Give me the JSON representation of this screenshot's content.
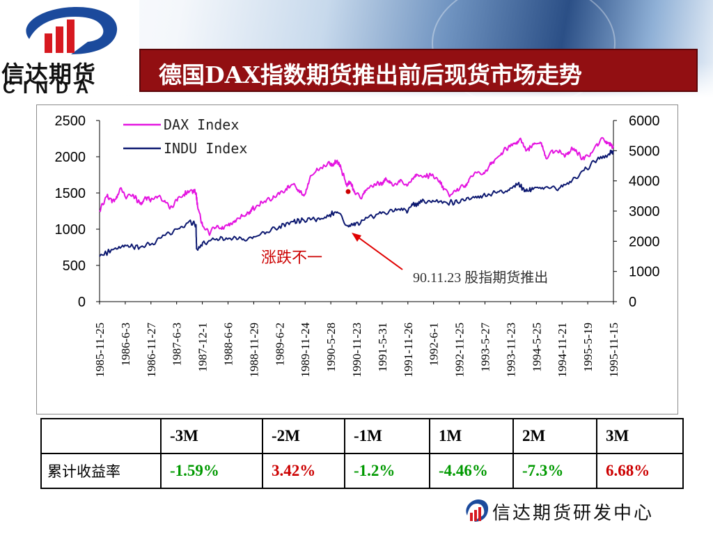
{
  "header": {
    "logo_cn": "信达期货",
    "logo_en": "CINDA",
    "title": "德国DAX指数期货推出前后现货市场走势"
  },
  "colors": {
    "title_bg": "#920f12",
    "dax_line": "#e414e0",
    "indu_line": "#0c1870",
    "annotation": "#cc0000",
    "positive": "#cc0000",
    "negative": "#009900"
  },
  "chart_data": {
    "type": "line",
    "title": "",
    "xlabel": "",
    "ylabel": "",
    "ylim_left": [
      0,
      2500
    ],
    "ylim_right": [
      0,
      6000
    ],
    "left_ticks": [
      "2500",
      "2000",
      "1500",
      "1000",
      "500",
      "0"
    ],
    "right_ticks": [
      "6000",
      "5000",
      "4000",
      "3000",
      "2000",
      "1000",
      "0"
    ],
    "x_ticks": [
      "1985-11-25",
      "1986-6-3",
      "1986-11-27",
      "1987-6-3",
      "1987-12-1",
      "1988-6-6",
      "1988-11-29",
      "1989-6-2",
      "1989-11-24",
      "1990-5-28",
      "1990-11-23",
      "1991-5-31",
      "1991-11-26",
      "1992-6-1",
      "1992-11-25",
      "1993-5-27",
      "1993-11-23",
      "1994-5-25",
      "1994-11-21",
      "1995-5-19",
      "1995-11-15"
    ],
    "grid": false,
    "legend_position": "top-left",
    "series": [
      {
        "name": "DAX Index",
        "axis": "left",
        "x": [
          "1985-11-25",
          "1986-1-15",
          "1986-3-10",
          "1986-4-20",
          "1986-6-3",
          "1986-7-20",
          "1986-9-10",
          "1986-10-20",
          "1986-11-27",
          "1987-1-15",
          "1987-3-1",
          "1987-4-15",
          "1987-6-3",
          "1987-7-20",
          "1987-9-15",
          "1987-10-15",
          "1987-10-26",
          "1987-12-1",
          "1988-1-15",
          "1988-3-1",
          "1988-4-15",
          "1988-6-6",
          "1988-7-20",
          "1988-9-10",
          "1988-10-20",
          "1988-11-29",
          "1989-1-15",
          "1989-3-1",
          "1989-4-15",
          "1989-6-2",
          "1989-7-20",
          "1989-9-10",
          "1989-10-20",
          "1989-11-24",
          "1990-1-5",
          "1990-2-20",
          "1990-4-10",
          "1990-5-28",
          "1990-6-20",
          "1990-7-20",
          "1990-8-20",
          "1990-9-25",
          "1990-10-25",
          "1990-11-23",
          "1991-1-10",
          "1991-2-20",
          "1991-4-10",
          "1991-5-31",
          "1991-7-10",
          "1991-8-20",
          "1991-10-10",
          "1991-11-26",
          "1992-1-10",
          "1992-2-20",
          "1992-4-10",
          "1992-6-1",
          "1992-7-20",
          "1992-8-20",
          "1992-10-5",
          "1992-11-25",
          "1993-1-10",
          "1993-2-20",
          "1993-4-10",
          "1993-5-27",
          "1993-7-10",
          "1993-8-20",
          "1993-10-5",
          "1993-11-23",
          "1994-1-5",
          "1994-2-15",
          "1994-3-30",
          "1994-5-25",
          "1994-7-10",
          "1994-8-20",
          "1994-10-5",
          "1994-11-21",
          "1995-1-5",
          "1995-2-15",
          "1995-3-30",
          "1995-5-19",
          "1995-7-5",
          "1995-8-20",
          "1995-10-5",
          "1995-11-15",
          "1995-12-15"
        ],
        "values": [
          1260,
          1450,
          1380,
          1560,
          1420,
          1480,
          1350,
          1440,
          1400,
          1450,
          1380,
          1300,
          1390,
          1480,
          1540,
          1500,
          1320,
          1050,
          940,
          1020,
          1000,
          1080,
          1120,
          1180,
          1230,
          1290,
          1340,
          1400,
          1420,
          1480,
          1560,
          1620,
          1540,
          1460,
          1700,
          1810,
          1860,
          1900,
          1880,
          1950,
          1820,
          1620,
          1640,
          1500,
          1420,
          1560,
          1620,
          1640,
          1680,
          1600,
          1650,
          1620,
          1700,
          1740,
          1720,
          1760,
          1650,
          1560,
          1470,
          1560,
          1580,
          1700,
          1780,
          1760,
          1870,
          1960,
          2050,
          2130,
          2180,
          2250,
          2080,
          2170,
          2200,
          1980,
          2090,
          2060,
          2010,
          2100,
          2050,
          1960,
          2050,
          2180,
          2250,
          2180,
          2130
        ]
      },
      {
        "name": "INDU Index",
        "axis": "right",
        "x": [
          "1985-11-25",
          "1986-3-10",
          "1986-6-3",
          "1986-9-10",
          "1986-11-27",
          "1987-3-1",
          "1987-6-3",
          "1987-8-25",
          "1987-10-15",
          "1987-10-19",
          "1987-12-1",
          "1988-3-1",
          "1988-6-6",
          "1988-9-10",
          "1988-11-29",
          "1989-3-1",
          "1989-6-2",
          "1989-9-10",
          "1989-11-24",
          "1990-3-1",
          "1990-5-28",
          "1990-7-20",
          "1990-10-10",
          "1990-11-23",
          "1991-3-1",
          "1991-5-31",
          "1991-9-1",
          "1991-11-26",
          "1992-1-10",
          "1992-3-15",
          "1992-6-1",
          "1992-9-10",
          "1992-11-25",
          "1993-3-1",
          "1993-5-27",
          "1993-9-1",
          "1993-11-23",
          "1994-2-1",
          "1994-3-30",
          "1994-5-25",
          "1994-8-20",
          "1994-11-21",
          "1995-2-15",
          "1995-5-19",
          "1995-8-20",
          "1995-11-15",
          "1995-12-15"
        ],
        "values": [
          1500,
          1750,
          1850,
          1800,
          1900,
          2200,
          2400,
          2650,
          2550,
          1750,
          1950,
          2050,
          2100,
          2050,
          2150,
          2300,
          2500,
          2650,
          2700,
          2750,
          2880,
          2970,
          2480,
          2520,
          2800,
          2920,
          3000,
          3010,
          3200,
          3300,
          3350,
          3280,
          3290,
          3400,
          3520,
          3600,
          3700,
          3900,
          3650,
          3750,
          3800,
          3750,
          3950,
          4350,
          4700,
          4900,
          5000
        ]
      }
    ],
    "annotations": [
      {
        "text": "涨跌不一",
        "color": "#cc0000"
      },
      {
        "text": "90.11.23 股指期货推出",
        "color": "#333333"
      }
    ]
  },
  "table": {
    "headers": [
      "",
      "-3M",
      "-2M",
      "-1M",
      "1M",
      "2M",
      "3M"
    ],
    "row_label": "累计收益率",
    "values": [
      {
        "text": "-1.59%",
        "tone": "negative"
      },
      {
        "text": "3.42%",
        "tone": "positive"
      },
      {
        "text": "-1.2%",
        "tone": "negative"
      },
      {
        "text": "-4.46%",
        "tone": "negative"
      },
      {
        "text": "-7.3%",
        "tone": "negative"
      },
      {
        "text": "6.68%",
        "tone": "positive"
      }
    ]
  },
  "footer": {
    "text": "信达期货研发中心"
  }
}
